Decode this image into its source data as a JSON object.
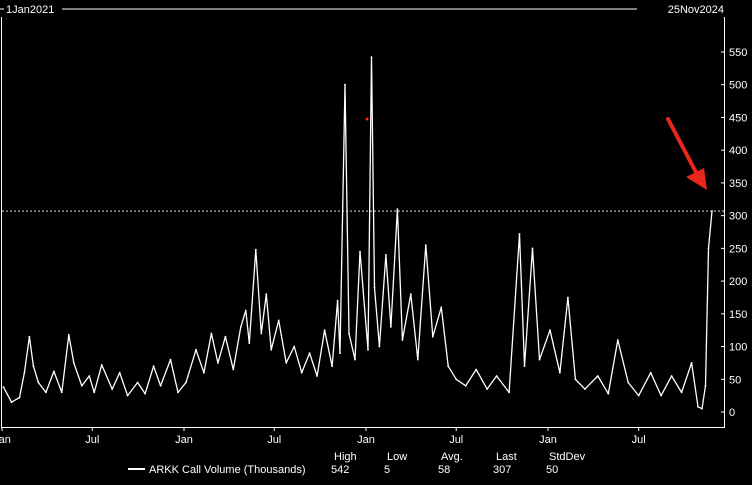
{
  "header": {
    "start_date": "1Jan2021",
    "end_date": "25Nov2024"
  },
  "colors": {
    "background": "#000000",
    "line": "#ffffff",
    "arrow": "#e8261c",
    "dot": "#ff2a00"
  },
  "legend": {
    "series_label": "ARKK Call Volume (Thousands)",
    "columns": [
      {
        "label": "High",
        "value": "542"
      },
      {
        "label": "Low",
        "value": "5"
      },
      {
        "label": "Avg.",
        "value": "58"
      },
      {
        "label": "Last",
        "value": "307"
      },
      {
        "label": "StdDev",
        "value": "50"
      }
    ]
  },
  "chart_data": {
    "type": "line",
    "title": "",
    "xlabel": "",
    "ylabel": "",
    "ylim": [
      0,
      560
    ],
    "y_ticks": [
      0,
      50,
      100,
      150,
      200,
      250,
      300,
      350,
      400,
      450,
      500,
      550
    ],
    "x_ticks": [
      {
        "date": "2021-01-01",
        "label": "Jan"
      },
      {
        "date": "2021-07-01",
        "label": "Jul"
      },
      {
        "date": "2022-01-01",
        "label": "Jan"
      },
      {
        "date": "2022-07-01",
        "label": "Jul"
      },
      {
        "date": "2023-01-01",
        "label": "Jan"
      },
      {
        "date": "2023-07-01",
        "label": "Jul"
      },
      {
        "date": "2024-01-01",
        "label": "Jan"
      },
      {
        "date": "2024-07-01",
        "label": "Jul"
      }
    ],
    "x_range": [
      "2021-01-01",
      "2024-11-25"
    ],
    "grid": false,
    "reference_line": {
      "value": 307,
      "style": "dashed"
    },
    "series": [
      {
        "name": "ARKK Call Volume (Thousands)",
        "points": [
          [
            "2021-01-04",
            38
          ],
          [
            "2021-01-20",
            15
          ],
          [
            "2021-02-05",
            22
          ],
          [
            "2021-02-15",
            60
          ],
          [
            "2021-02-25",
            115
          ],
          [
            "2021-03-05",
            70
          ],
          [
            "2021-03-15",
            45
          ],
          [
            "2021-03-30",
            30
          ],
          [
            "2021-04-15",
            62
          ],
          [
            "2021-05-01",
            30
          ],
          [
            "2021-05-15",
            118
          ],
          [
            "2021-05-25",
            75
          ],
          [
            "2021-06-10",
            40
          ],
          [
            "2021-06-25",
            55
          ],
          [
            "2021-07-05",
            30
          ],
          [
            "2021-07-20",
            72
          ],
          [
            "2021-08-10",
            35
          ],
          [
            "2021-08-25",
            60
          ],
          [
            "2021-09-10",
            25
          ],
          [
            "2021-09-30",
            45
          ],
          [
            "2021-10-15",
            28
          ],
          [
            "2021-11-01",
            70
          ],
          [
            "2021-11-15",
            40
          ],
          [
            "2021-12-05",
            80
          ],
          [
            "2021-12-20",
            30
          ],
          [
            "2022-01-05",
            45
          ],
          [
            "2022-01-25",
            95
          ],
          [
            "2022-02-10",
            60
          ],
          [
            "2022-02-25",
            120
          ],
          [
            "2022-03-10",
            75
          ],
          [
            "2022-03-25",
            115
          ],
          [
            "2022-04-10",
            65
          ],
          [
            "2022-04-25",
            130
          ],
          [
            "2022-05-05",
            155
          ],
          [
            "2022-05-12",
            105
          ],
          [
            "2022-05-25",
            248
          ],
          [
            "2022-06-05",
            120
          ],
          [
            "2022-06-15",
            180
          ],
          [
            "2022-06-25",
            95
          ],
          [
            "2022-07-10",
            140
          ],
          [
            "2022-07-25",
            75
          ],
          [
            "2022-08-10",
            100
          ],
          [
            "2022-08-25",
            60
          ],
          [
            "2022-09-10",
            90
          ],
          [
            "2022-09-25",
            55
          ],
          [
            "2022-10-10",
            125
          ],
          [
            "2022-10-25",
            70
          ],
          [
            "2022-11-05",
            170
          ],
          [
            "2022-11-10",
            90
          ],
          [
            "2022-11-20",
            500
          ],
          [
            "2022-11-28",
            120
          ],
          [
            "2022-12-10",
            80
          ],
          [
            "2022-12-20",
            245
          ],
          [
            "2023-01-05",
            95
          ],
          [
            "2023-01-12",
            542
          ],
          [
            "2023-01-18",
            190
          ],
          [
            "2023-01-28",
            100
          ],
          [
            "2023-02-10",
            240
          ],
          [
            "2023-02-20",
            130
          ],
          [
            "2023-03-05",
            310
          ],
          [
            "2023-03-15",
            110
          ],
          [
            "2023-04-01",
            180
          ],
          [
            "2023-04-15",
            80
          ],
          [
            "2023-05-01",
            255
          ],
          [
            "2023-05-15",
            115
          ],
          [
            "2023-06-01",
            160
          ],
          [
            "2023-06-15",
            70
          ],
          [
            "2023-07-01",
            50
          ],
          [
            "2023-07-20",
            40
          ],
          [
            "2023-08-10",
            65
          ],
          [
            "2023-09-01",
            35
          ],
          [
            "2023-09-20",
            55
          ],
          [
            "2023-10-15",
            30
          ],
          [
            "2023-11-05",
            272
          ],
          [
            "2023-11-15",
            70
          ],
          [
            "2023-12-01",
            250
          ],
          [
            "2023-12-15",
            80
          ],
          [
            "2024-01-05",
            125
          ],
          [
            "2024-01-25",
            60
          ],
          [
            "2024-02-10",
            175
          ],
          [
            "2024-02-25",
            50
          ],
          [
            "2024-03-15",
            35
          ],
          [
            "2024-04-10",
            55
          ],
          [
            "2024-05-01",
            28
          ],
          [
            "2024-05-20",
            110
          ],
          [
            "2024-06-10",
            45
          ],
          [
            "2024-07-01",
            25
          ],
          [
            "2024-07-25",
            60
          ],
          [
            "2024-08-15",
            25
          ],
          [
            "2024-09-05",
            55
          ],
          [
            "2024-09-25",
            30
          ],
          [
            "2024-10-15",
            75
          ],
          [
            "2024-10-28",
            8
          ],
          [
            "2024-11-05",
            5
          ],
          [
            "2024-11-12",
            40
          ],
          [
            "2024-11-18",
            250
          ],
          [
            "2024-11-25",
            307
          ]
        ]
      }
    ]
  }
}
